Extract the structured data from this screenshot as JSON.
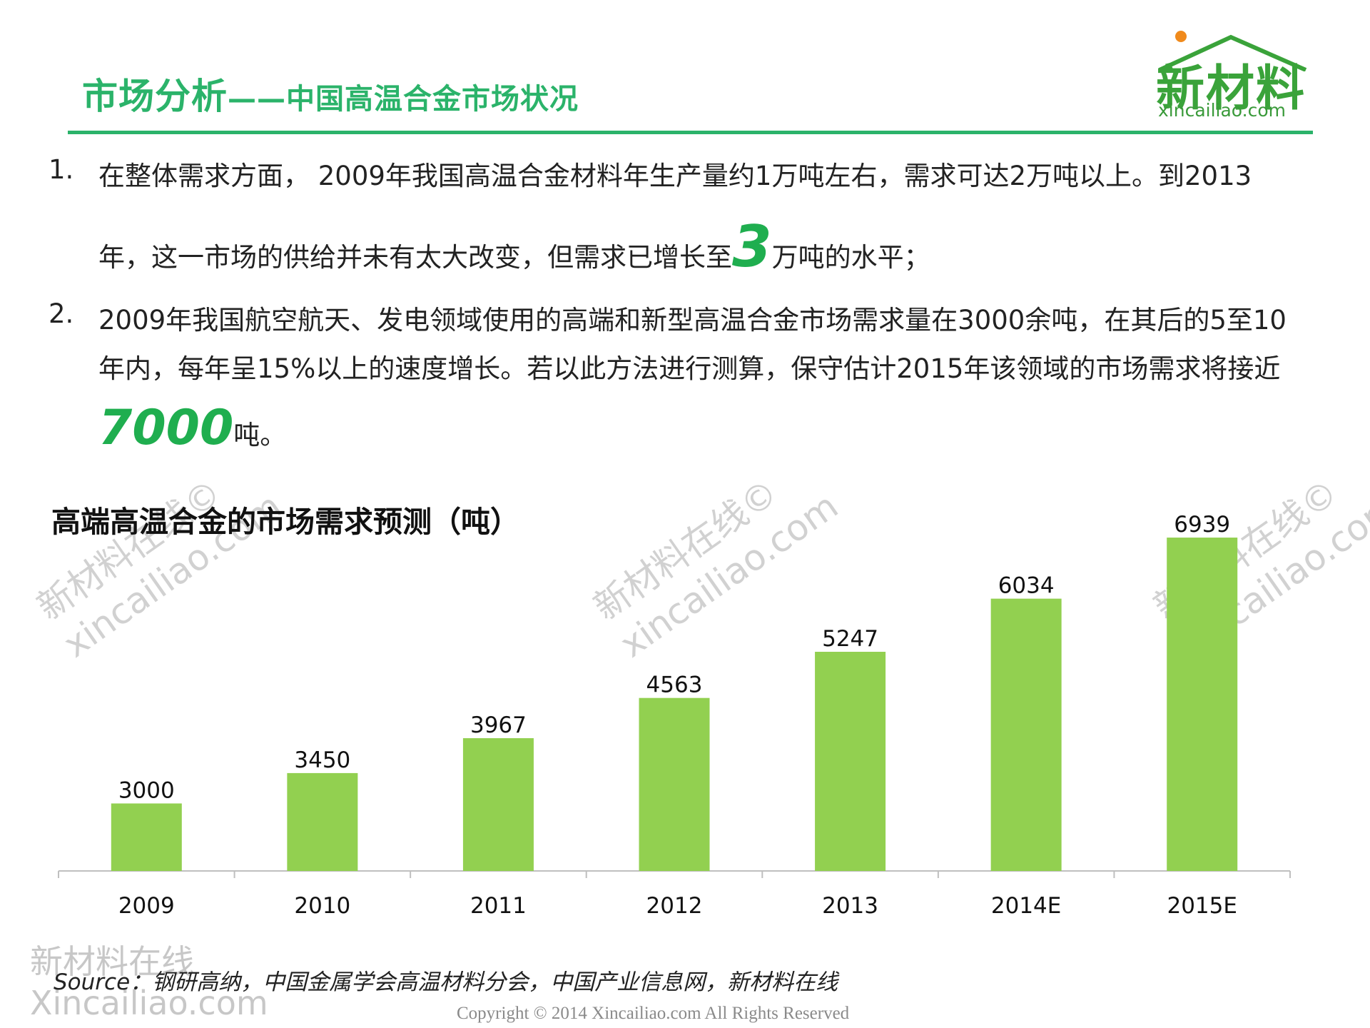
{
  "header": {
    "title_main": "市场分析",
    "title_sub": "——中国高温合金市场状况",
    "logo_text": "新材料",
    "logo_url": "xincailiao.com"
  },
  "paragraphs": [
    {
      "number": "1.",
      "line1": "在整体需求方面， 2009年我国高温合金材料年生产量约1万吨左右，需求可达2万吨以上。到2013",
      "line2_before": "年，这一市场的供给并未有太大改变，但需求已增长至",
      "line2_highlight": "3",
      "line2_after": "万吨的水平；"
    },
    {
      "number": "2.",
      "line1": "2009年我国航空航天、发电领域使用的高端和新型高温合金市场需求量在3000余吨，在其后的5至10",
      "line2": "年内，每年呈15%以上的速度增长。若以此方法进行测算，保守估计2015年该领域的市场需求将接近",
      "line3_highlight": "7000",
      "line3_after": "吨。"
    }
  ],
  "chart_data": {
    "type": "bar",
    "title": "高端高温合金的市场需求预测（吨）",
    "categories": [
      "2009",
      "2010",
      "2011",
      "2012",
      "2013",
      "2014E",
      "2015E"
    ],
    "values": [
      3000,
      3450,
      3967,
      4563,
      5247,
      6034,
      6939
    ],
    "ylim": [
      2000,
      7500
    ],
    "bar_color": "#92d050",
    "axis_color": "#bfbfbf",
    "grid": false,
    "data_labels": true
  },
  "watermark": {
    "line1": "新材料在线©",
    "line2": "xincailiao.com",
    "corner_line1": "新材料在线",
    "corner_line2": "Xincailiao.com"
  },
  "footer": {
    "source": "Source：钢研高纳，中国金属学会高温材料分会，中国产业信息网，新材料在线",
    "copyright": "Copyright © 2014   Xincailiao.com   All Rights Reserved"
  },
  "colors": {
    "accent": "#2bb36a",
    "highlight": "#1fae4f"
  }
}
